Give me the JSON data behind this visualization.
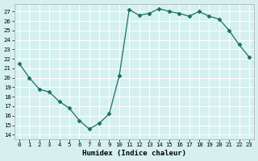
{
  "x": [
    0,
    1,
    2,
    3,
    4,
    5,
    6,
    7,
    8,
    9,
    10,
    11,
    12,
    13,
    14,
    15,
    16,
    17,
    18,
    19,
    20,
    21,
    22,
    23
  ],
  "y": [
    21.5,
    20.0,
    18.8,
    18.5,
    17.5,
    16.8,
    15.5,
    14.6,
    15.2,
    16.2,
    20.2,
    27.2,
    26.6,
    26.8,
    27.3,
    27.0,
    26.8,
    26.5,
    27.0,
    26.5,
    26.2,
    25.0,
    23.5,
    22.2
  ],
  "xlabel": "Humidex (Indice chaleur)",
  "xlim": [
    -0.5,
    23.5
  ],
  "ylim": [
    13.5,
    27.8
  ],
  "yticks": [
    14,
    15,
    16,
    17,
    18,
    19,
    20,
    21,
    22,
    23,
    24,
    25,
    26,
    27
  ],
  "xticks": [
    0,
    1,
    2,
    3,
    4,
    5,
    6,
    7,
    8,
    9,
    10,
    11,
    12,
    13,
    14,
    15,
    16,
    17,
    18,
    19,
    20,
    21,
    22,
    23
  ],
  "line_color": "#1a7060",
  "marker": "D",
  "marker_size": 2.5,
  "bg_color": "#d6f0f0",
  "grid_color": "#ffffff",
  "grid_minor_color": "#e8f8f8",
  "spine_color": "#aaaaaa"
}
